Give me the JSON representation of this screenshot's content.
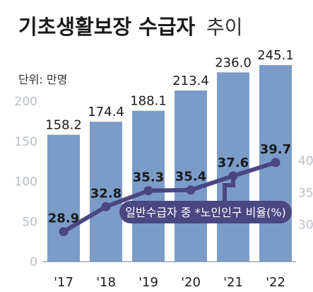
{
  "title_bold": "기초생활보장 수급자",
  "title_light": "추이",
  "unit": "단위: 만명",
  "colors": {
    "bar": "#7b9cc9",
    "line": "#4b4782",
    "badge": "#4b4782",
    "axis_text": "#b8bec6",
    "text": "#1a1a1a"
  },
  "chart_data": {
    "type": "bar",
    "title": "기초생활보장 수급자 추이",
    "categories": [
      "'17",
      "'18",
      "'19",
      "'20",
      "'21",
      "'22"
    ],
    "y_left": {
      "ticks": [
        0,
        50,
        100,
        150,
        200
      ],
      "ylim": [
        0,
        245.1
      ]
    },
    "y_right": {
      "ticks": [
        30,
        35,
        40
      ],
      "ylim": [
        26.2,
        44.1
      ]
    },
    "series": [
      {
        "type": "bar",
        "axis": "left",
        "values": [
          158.2,
          174.4,
          188.1,
          213.4,
          236.0,
          245.1
        ],
        "labels": [
          "158.2",
          "174.4",
          "188.1",
          "213.4",
          "236.0",
          "245.1"
        ]
      },
      {
        "type": "line",
        "axis": "right",
        "name": "일반수급자 중 *노인인구 비율(%)",
        "values": [
          28.9,
          32.8,
          35.3,
          35.4,
          37.6,
          39.7
        ],
        "labels": [
          "28.9",
          "32.8",
          "35.3",
          "35.4",
          "37.6",
          "39.7"
        ]
      }
    ],
    "grid": false
  }
}
